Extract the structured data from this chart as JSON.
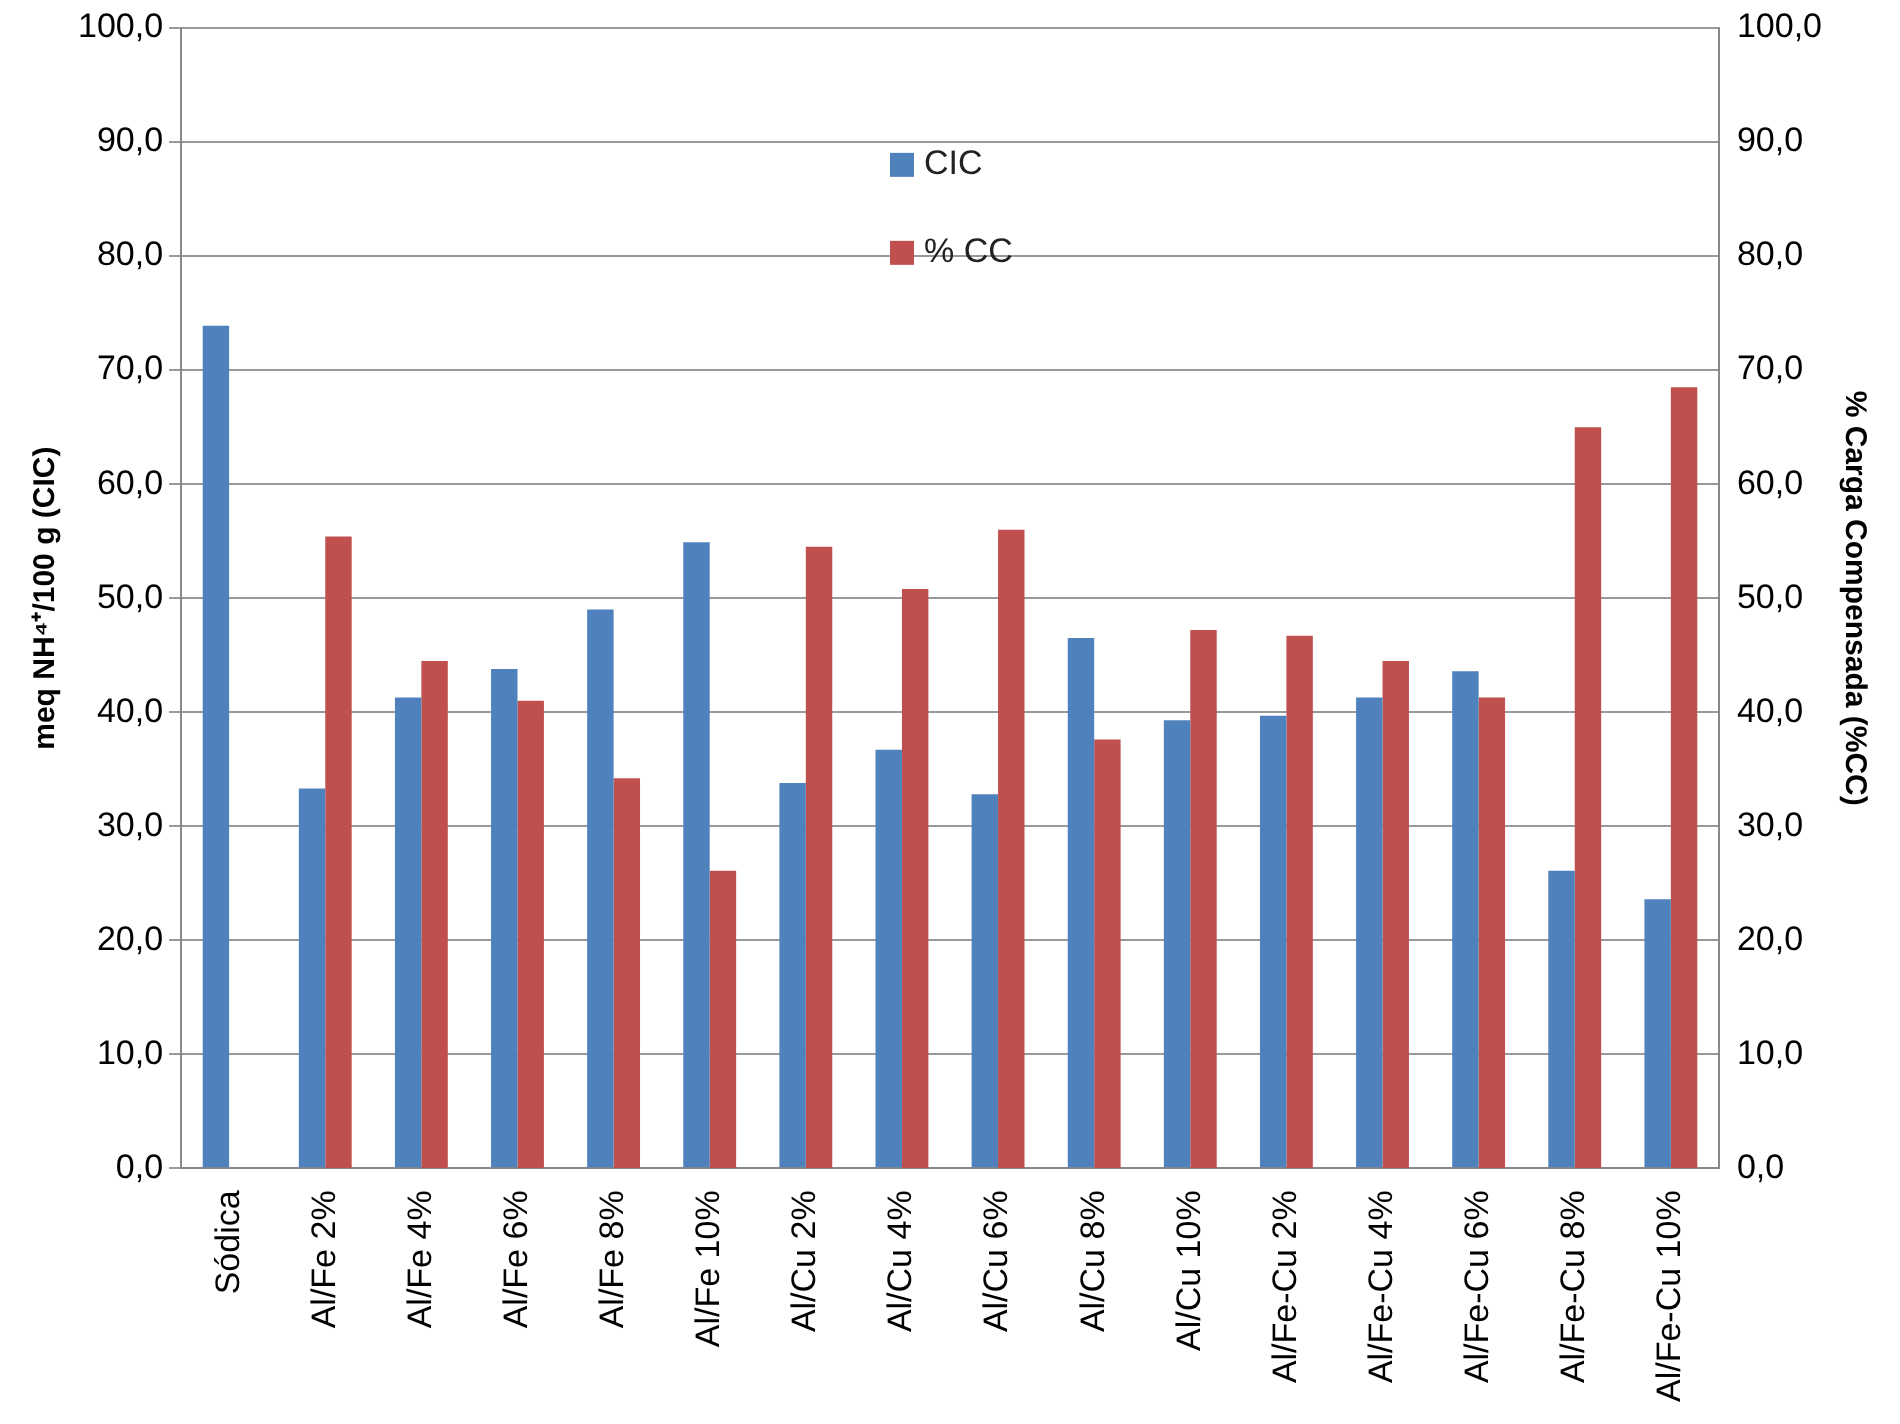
{
  "chart_data": {
    "type": "bar",
    "ylabel": "meq NH⁴⁺/100 g (CIC)",
    "y2label": "% Carga Compensada (%CC)",
    "categories": [
      "Sódica",
      "Al/Fe 2%",
      "Al/Fe 4%",
      "Al/Fe 6%",
      "Al/Fe 8%",
      "Al/Fe 10%",
      "Al/Cu 2%",
      "Al/Cu 4%",
      "Al/Cu 6%",
      "Al/Cu 8%",
      "Al/Cu 10%",
      "Al/Fe-Cu 2%",
      "Al/Fe-Cu 4%",
      "Al/Fe-Cu 6%",
      "Al/Fe-Cu 8%",
      "Al/Fe-Cu 10%"
    ],
    "series": [
      {
        "name": "CIC",
        "color": "#4f81bd",
        "values": [
          73.9,
          33.3,
          41.3,
          43.8,
          49.0,
          54.9,
          33.8,
          36.7,
          32.8,
          46.5,
          39.3,
          39.7,
          41.3,
          43.6,
          26.1,
          23.6
        ]
      },
      {
        "name": "% CC",
        "color": "#c0504d",
        "axis": "y2",
        "values": [
          null,
          55.4,
          44.5,
          41.0,
          34.2,
          26.1,
          54.5,
          50.8,
          56.0,
          37.6,
          47.2,
          46.7,
          44.5,
          41.3,
          65.0,
          68.5
        ]
      }
    ],
    "ylim": [
      0,
      100
    ],
    "yticks": [
      {
        "value": 0,
        "label": "0,0"
      },
      {
        "value": 10,
        "label": "10,0"
      },
      {
        "value": 20,
        "label": "20,0"
      },
      {
        "value": 30,
        "label": "30,0"
      },
      {
        "value": 40,
        "label": "40,0"
      },
      {
        "value": 50,
        "label": "50,0"
      },
      {
        "value": 60,
        "label": "60,0"
      },
      {
        "value": 70,
        "label": "70,0"
      },
      {
        "value": 80,
        "label": "80,0"
      },
      {
        "value": 90,
        "label": "90,0"
      },
      {
        "value": 100,
        "label": "100,0"
      }
    ],
    "y2lim": [
      0,
      100
    ],
    "y2ticks": [
      {
        "value": 0,
        "label": "0,0"
      },
      {
        "value": 10,
        "label": "10,0"
      },
      {
        "value": 20,
        "label": "20,0"
      },
      {
        "value": 30,
        "label": "30,0"
      },
      {
        "value": 40,
        "label": "40,0"
      },
      {
        "value": 50,
        "label": "50,0"
      },
      {
        "value": 60,
        "label": "60,0"
      },
      {
        "value": 70,
        "label": "70,0"
      },
      {
        "value": 80,
        "label": "80,0"
      },
      {
        "value": 90,
        "label": "90,0"
      },
      {
        "value": 100,
        "label": "100,0"
      }
    ],
    "grid": "y",
    "legend": "top"
  }
}
